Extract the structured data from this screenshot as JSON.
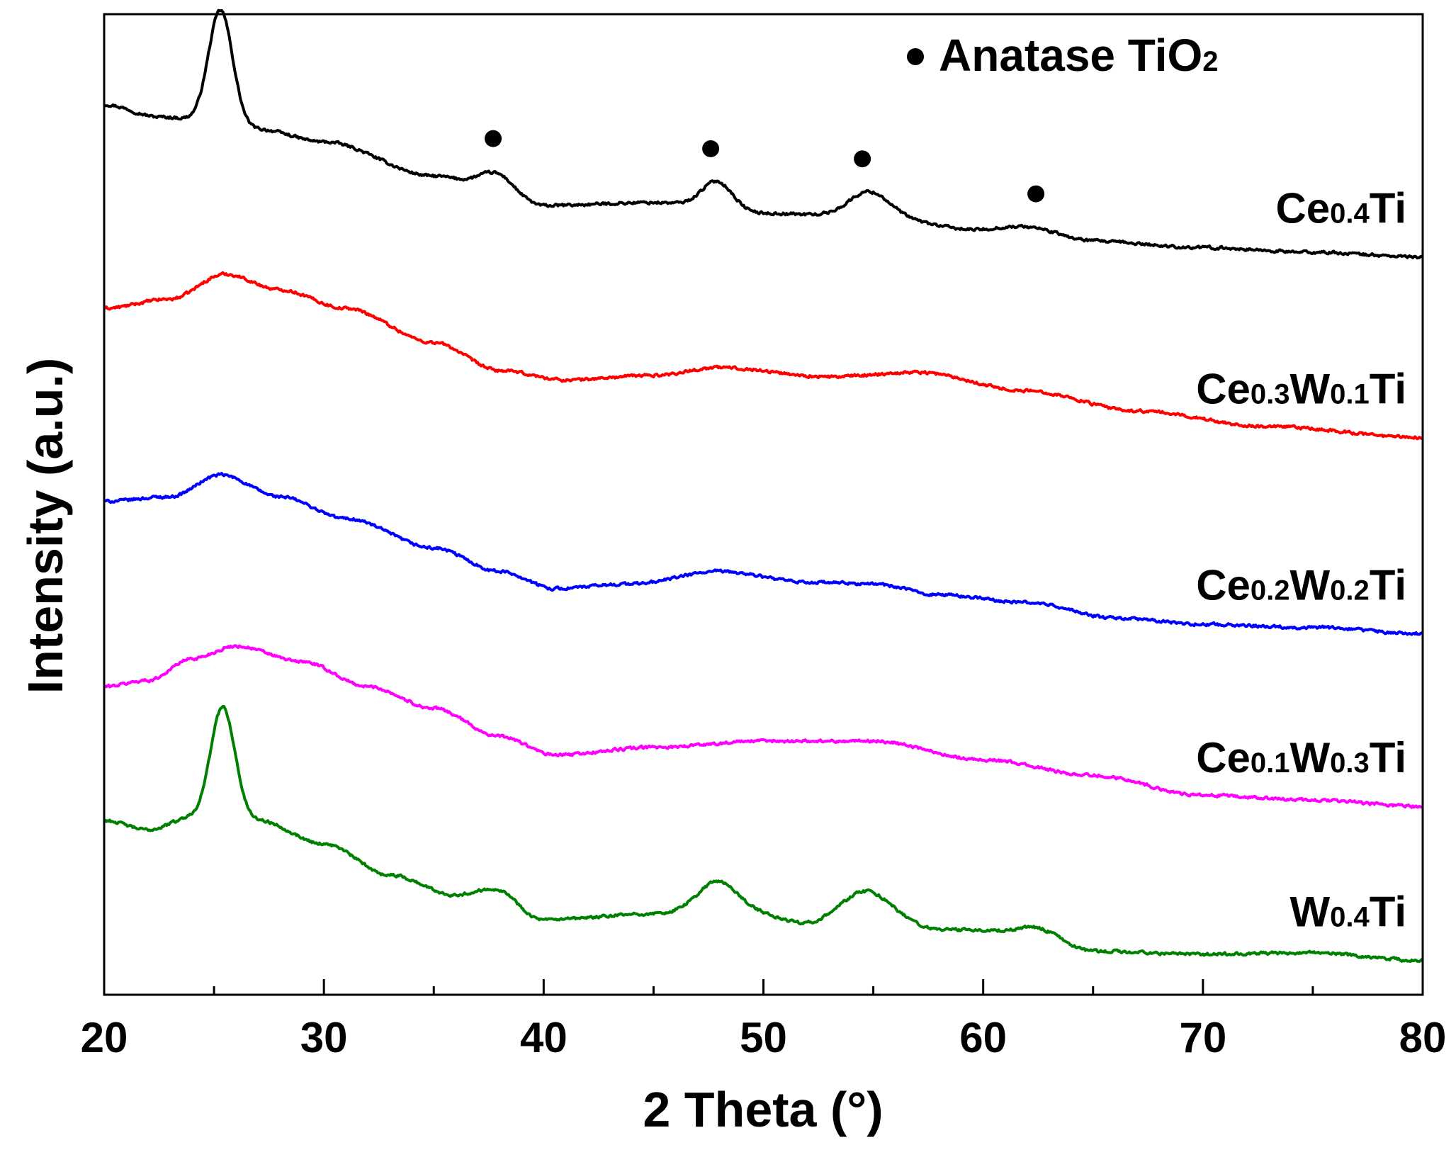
{
  "chart_data": {
    "type": "line",
    "title": "",
    "xlabel": "2 Theta (°)",
    "ylabel": "Intensity (a.u.)",
    "xlim": [
      20,
      80
    ],
    "xticks": [
      "20",
      "30",
      "40",
      "50",
      "60",
      "70",
      "80"
    ],
    "yticks": [],
    "y_units": "arbitrary (offset stacked patterns)",
    "legend": {
      "marker": "●",
      "text": "Anatase TiO",
      "subscript": "2",
      "placement": "top-right"
    },
    "anatase_peaks_2theta": [
      25.3,
      37.7,
      47.6,
      54.5,
      62.4
    ],
    "series": [
      {
        "name": "Ce0.4Ti",
        "label_parts": [
          {
            "t": "Ce",
            "sub": false
          },
          {
            "t": "0.4",
            "sub": true
          },
          {
            "t": "Ti",
            "sub": false
          }
        ],
        "color": "#000000",
        "offset": 3.74,
        "baseline": [
          [
            20,
            0.98
          ],
          [
            22.5,
            0.9
          ],
          [
            27,
            0.82
          ],
          [
            30,
            0.74
          ],
          [
            35,
            0.52
          ],
          [
            38,
            0.44
          ],
          [
            40,
            0.33
          ],
          [
            45,
            0.35
          ],
          [
            50,
            0.28
          ],
          [
            55,
            0.26
          ],
          [
            60,
            0.17
          ],
          [
            65,
            0.1
          ],
          [
            70,
            0.06
          ],
          [
            75,
            0.03
          ],
          [
            80,
            0.0
          ]
        ],
        "peaks": [
          [
            25.3,
            0.74,
            0.55
          ],
          [
            37.7,
            0.1,
            0.7
          ],
          [
            47.9,
            0.18,
            0.7
          ],
          [
            54.8,
            0.16,
            0.9
          ],
          [
            62.3,
            0.05,
            1.2
          ]
        ],
        "noise": 0.014
      },
      {
        "name": "Ce0.3W0.1Ti",
        "label_parts": [
          {
            "t": "Ce",
            "sub": false
          },
          {
            "t": "0.3",
            "sub": true
          },
          {
            "t": "W",
            "sub": false
          },
          {
            "t": "0.1",
            "sub": true
          },
          {
            "t": "Ti",
            "sub": false
          }
        ],
        "color": "#ff0000",
        "offset": 2.53,
        "baseline": [
          [
            20,
            0.88
          ],
          [
            23,
            0.94
          ],
          [
            25.5,
            1.1
          ],
          [
            28,
            1.0
          ],
          [
            31,
            0.88
          ],
          [
            35,
            0.66
          ],
          [
            38,
            0.48
          ],
          [
            41,
            0.42
          ],
          [
            45,
            0.45
          ],
          [
            48,
            0.5
          ],
          [
            53,
            0.44
          ],
          [
            57,
            0.47
          ],
          [
            62,
            0.35
          ],
          [
            67,
            0.22
          ],
          [
            73,
            0.12
          ],
          [
            80,
            0.05
          ]
        ],
        "peaks": [],
        "noise": 0.014
      },
      {
        "name": "Ce0.2W0.2Ti",
        "label_parts": [
          {
            "t": "Ce",
            "sub": false
          },
          {
            "t": "0.2",
            "sub": true
          },
          {
            "t": "W",
            "sub": false
          },
          {
            "t": "0.2",
            "sub": true
          },
          {
            "t": "Ti",
            "sub": false
          }
        ],
        "color": "#0000ff",
        "offset": 1.27,
        "baseline": [
          [
            20,
            0.9
          ],
          [
            23,
            0.93
          ],
          [
            25.3,
            1.07
          ],
          [
            28,
            0.93
          ],
          [
            31,
            0.79
          ],
          [
            35,
            0.6
          ],
          [
            38,
            0.45
          ],
          [
            40.5,
            0.34
          ],
          [
            44,
            0.37
          ],
          [
            48,
            0.45
          ],
          [
            52,
            0.38
          ],
          [
            55,
            0.37
          ],
          [
            58,
            0.3
          ],
          [
            62,
            0.25
          ],
          [
            66,
            0.15
          ],
          [
            70,
            0.11
          ],
          [
            75,
            0.09
          ],
          [
            80,
            0.05
          ]
        ],
        "peaks": [],
        "noise": 0.014
      },
      {
        "name": "Ce0.1W0.3Ti",
        "label_parts": [
          {
            "t": "Ce",
            "sub": false
          },
          {
            "t": "0.1",
            "sub": true
          },
          {
            "t": "W",
            "sub": false
          },
          {
            "t": "0.3",
            "sub": true
          },
          {
            "t": "Ti",
            "sub": false
          }
        ],
        "color": "#ff00ff",
        "offset": 0.16,
        "baseline": [
          [
            20,
            0.82
          ],
          [
            22,
            0.86
          ],
          [
            24,
            1.0
          ],
          [
            26,
            1.08
          ],
          [
            29,
            0.98
          ],
          [
            32,
            0.82
          ],
          [
            35,
            0.68
          ],
          [
            38,
            0.5
          ],
          [
            40.5,
            0.38
          ],
          [
            45,
            0.43
          ],
          [
            50,
            0.47
          ],
          [
            55,
            0.47
          ],
          [
            60,
            0.35
          ],
          [
            65,
            0.25
          ],
          [
            70,
            0.12
          ],
          [
            75,
            0.09
          ],
          [
            80,
            0.05
          ]
        ],
        "peaks": [],
        "noise": 0.014
      },
      {
        "name": "W0.4Ti",
        "label_parts": [
          {
            "t": "W",
            "sub": false
          },
          {
            "t": "0.4",
            "sub": true
          },
          {
            "t": "Ti",
            "sub": false
          }
        ],
        "color": "#008000",
        "offset": -0.78,
        "baseline": [
          [
            20,
            0.9
          ],
          [
            22,
            0.84
          ],
          [
            24,
            0.92
          ],
          [
            27,
            0.9
          ],
          [
            30,
            0.75
          ],
          [
            33,
            0.55
          ],
          [
            36,
            0.42
          ],
          [
            38,
            0.4
          ],
          [
            40,
            0.26
          ],
          [
            45,
            0.3
          ],
          [
            48,
            0.37
          ],
          [
            52,
            0.24
          ],
          [
            55,
            0.33
          ],
          [
            58,
            0.2
          ],
          [
            62,
            0.18
          ],
          [
            65,
            0.06
          ],
          [
            70,
            0.04
          ],
          [
            75,
            0.05
          ],
          [
            80,
            0.0
          ]
        ],
        "peaks": [
          [
            25.4,
            0.72,
            0.55
          ],
          [
            37.7,
            0.06,
            0.7
          ],
          [
            47.9,
            0.14,
            0.8
          ],
          [
            54.5,
            0.12,
            1.0
          ],
          [
            62.5,
            0.04,
            1.0
          ]
        ],
        "noise": 0.014
      }
    ]
  }
}
